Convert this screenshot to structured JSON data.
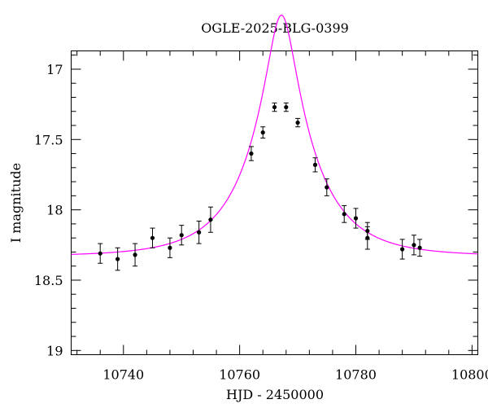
{
  "chart_data": {
    "type": "scatter",
    "title": "OGLE-2025-BLG-0399",
    "xlabel": "HJD - 2450000",
    "ylabel": "I magnitude",
    "xlim": [
      10731,
      10801
    ],
    "ylim": [
      19.03,
      16.87
    ],
    "y_inverted": true,
    "grid": false,
    "x_ticks": [
      10740,
      10760,
      10780,
      10800
    ],
    "x_tick_labels": [
      "10740",
      "10760",
      "10780",
      "10800"
    ],
    "y_ticks": [
      17,
      17.5,
      18,
      18.5,
      19
    ],
    "y_tick_labels": [
      "17",
      "17.5",
      "18",
      "18.5",
      "19"
    ],
    "series": [
      {
        "kind": "points_with_errorbars",
        "color": "#000000",
        "points": [
          {
            "x": 10736.0,
            "y": 18.31,
            "err": 0.07
          },
          {
            "x": 10739.0,
            "y": 18.35,
            "err": 0.08
          },
          {
            "x": 10742.0,
            "y": 18.32,
            "err": 0.08
          },
          {
            "x": 10745.0,
            "y": 18.2,
            "err": 0.07
          },
          {
            "x": 10748.0,
            "y": 18.27,
            "err": 0.07
          },
          {
            "x": 10750.0,
            "y": 18.18,
            "err": 0.07
          },
          {
            "x": 10753.0,
            "y": 18.16,
            "err": 0.08
          },
          {
            "x": 10755.0,
            "y": 18.07,
            "err": 0.09
          },
          {
            "x": 10762.0,
            "y": 17.6,
            "err": 0.05
          },
          {
            "x": 10764.0,
            "y": 17.45,
            "err": 0.04
          },
          {
            "x": 10766.0,
            "y": 17.27,
            "err": 0.03
          },
          {
            "x": 10768.0,
            "y": 17.27,
            "err": 0.03
          },
          {
            "x": 10770.0,
            "y": 17.38,
            "err": 0.03
          },
          {
            "x": 10773.0,
            "y": 17.68,
            "err": 0.05
          },
          {
            "x": 10775.0,
            "y": 17.84,
            "err": 0.06
          },
          {
            "x": 10778.0,
            "y": 18.03,
            "err": 0.06
          },
          {
            "x": 10780.0,
            "y": 18.06,
            "err": 0.07
          },
          {
            "x": 10782.0,
            "y": 18.15,
            "err": 0.06
          },
          {
            "x": 10782.0,
            "y": 18.2,
            "err": 0.08
          },
          {
            "x": 10788.0,
            "y": 18.28,
            "err": 0.07
          },
          {
            "x": 10790.0,
            "y": 18.25,
            "err": 0.07
          },
          {
            "x": 10791.0,
            "y": 18.27,
            "err": 0.06
          }
        ]
      },
      {
        "kind": "model_curve",
        "color": "#ff00ff",
        "model": {
          "t0": 10767.2,
          "u0": 0.2095,
          "tE": 11.0,
          "baseline_mag": 18.33
        }
      }
    ]
  }
}
